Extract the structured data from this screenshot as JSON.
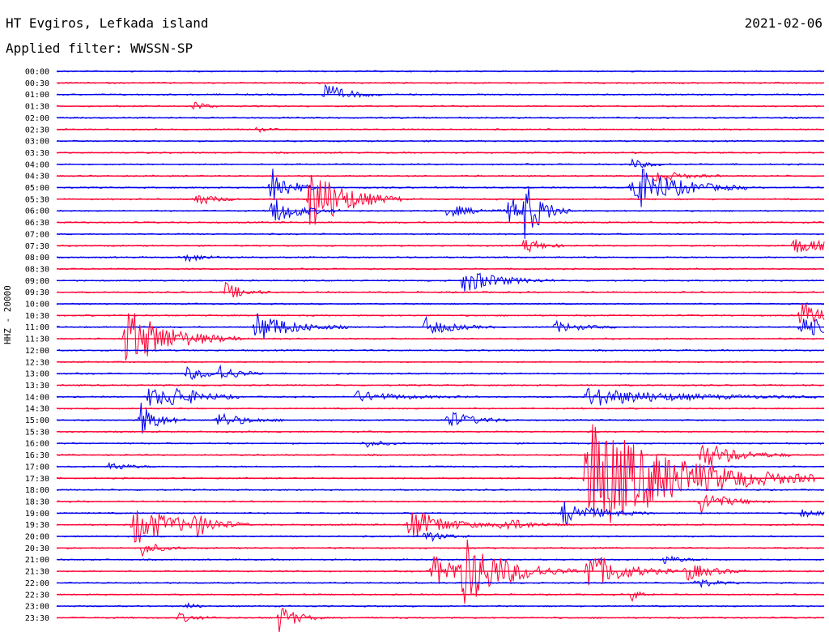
{
  "header": {
    "station": "HT Evgiros, Lefkada island",
    "date": "2021-02-06",
    "filter": "Applied filter: WWSSN-SP"
  },
  "chart_data": {
    "type": "line",
    "title": "HT Evgiros, Lefkada island",
    "subtitle": "Applied filter: WWSSN-SP",
    "ylabel": "HHZ - 20000",
    "xlabel": "",
    "trace_colors": [
      "#0000ee",
      "#ff0033"
    ],
    "rows": [
      "00:00",
      "00:30",
      "01:00",
      "01:30",
      "02:00",
      "02:30",
      "03:00",
      "03:30",
      "04:00",
      "04:30",
      "05:00",
      "05:30",
      "06:00",
      "06:30",
      "07:00",
      "07:30",
      "08:00",
      "08:30",
      "09:00",
      "09:30",
      "10:00",
      "10:30",
      "11:00",
      "11:30",
      "12:00",
      "12:30",
      "13:00",
      "13:30",
      "14:00",
      "14:30",
      "15:00",
      "15:30",
      "16:00",
      "16:30",
      "17:00",
      "17:30",
      "18:00",
      "18:30",
      "19:00",
      "19:30",
      "20:00",
      "20:30",
      "21:00",
      "21:30",
      "22:00",
      "22:30",
      "23:00",
      "23:30"
    ],
    "events": [
      {
        "row": 2,
        "x": 0.35,
        "amp": 14,
        "dur": 0.025
      },
      {
        "row": 3,
        "x": 0.18,
        "amp": 8,
        "dur": 0.01
      },
      {
        "row": 5,
        "x": 0.26,
        "amp": 4,
        "dur": 0.01
      },
      {
        "row": 8,
        "x": 0.75,
        "amp": 6,
        "dur": 0.02
      },
      {
        "row": 9,
        "x": 0.78,
        "amp": 8,
        "dur": 0.03
      },
      {
        "row": 10,
        "x": 0.28,
        "amp": 28,
        "dur": 0.02
      },
      {
        "row": 10,
        "x": 0.75,
        "amp": 30,
        "dur": 0.05
      },
      {
        "row": 11,
        "x": 0.33,
        "amp": 45,
        "dur": 0.04
      },
      {
        "row": 11,
        "x": 0.18,
        "amp": 10,
        "dur": 0.02
      },
      {
        "row": 12,
        "x": 0.28,
        "amp": 18,
        "dur": 0.03
      },
      {
        "row": 12,
        "x": 0.59,
        "amp": 16,
        "dur": 0.03
      },
      {
        "row": 12,
        "x": 0.51,
        "amp": 8,
        "dur": 0.03
      },
      {
        "row": 12,
        "x": 0.61,
        "amp": 30,
        "dur": 0.02
      },
      {
        "row": 15,
        "x": 0.61,
        "amp": 10,
        "dur": 0.02
      },
      {
        "row": 15,
        "x": 0.96,
        "amp": 10,
        "dur": 0.05
      },
      {
        "row": 16,
        "x": 0.17,
        "amp": 6,
        "dur": 0.02
      },
      {
        "row": 18,
        "x": 0.53,
        "amp": 16,
        "dur": 0.04
      },
      {
        "row": 19,
        "x": 0.22,
        "amp": 12,
        "dur": 0.02
      },
      {
        "row": 21,
        "x": 0.97,
        "amp": 16,
        "dur": 0.03
      },
      {
        "row": 22,
        "x": 0.26,
        "amp": 20,
        "dur": 0.04
      },
      {
        "row": 22,
        "x": 0.48,
        "amp": 12,
        "dur": 0.03
      },
      {
        "row": 22,
        "x": 0.97,
        "amp": 14,
        "dur": 0.04
      },
      {
        "row": 22,
        "x": 0.65,
        "amp": 7,
        "dur": 0.03
      },
      {
        "row": 23,
        "x": 0.09,
        "amp": 40,
        "dur": 0.05
      },
      {
        "row": 26,
        "x": 0.17,
        "amp": 8,
        "dur": 0.03
      },
      {
        "row": 26,
        "x": 0.21,
        "amp": 10,
        "dur": 0.02
      },
      {
        "row": 28,
        "x": 0.12,
        "amp": 12,
        "dur": 0.04
      },
      {
        "row": 28,
        "x": 0.15,
        "amp": 10,
        "dur": 0.03
      },
      {
        "row": 28,
        "x": 0.39,
        "amp": 7,
        "dur": 0.05
      },
      {
        "row": 28,
        "x": 0.69,
        "amp": 12,
        "dur": 0.1
      },
      {
        "row": 30,
        "x": 0.11,
        "amp": 22,
        "dur": 0.02
      },
      {
        "row": 30,
        "x": 0.21,
        "amp": 10,
        "dur": 0.03
      },
      {
        "row": 30,
        "x": 0.51,
        "amp": 12,
        "dur": 0.03
      },
      {
        "row": 32,
        "x": 0.4,
        "amp": 5,
        "dur": 0.02
      },
      {
        "row": 33,
        "x": 0.84,
        "amp": 18,
        "dur": 0.04
      },
      {
        "row": 34,
        "x": 0.07,
        "amp": 6,
        "dur": 0.02
      },
      {
        "row": 35,
        "x": 0.69,
        "amp": 80,
        "dur": 0.1
      },
      {
        "row": 37,
        "x": 0.84,
        "amp": 14,
        "dur": 0.03
      },
      {
        "row": 38,
        "x": 0.66,
        "amp": 16,
        "dur": 0.04
      },
      {
        "row": 38,
        "x": 0.97,
        "amp": 6,
        "dur": 0.02
      },
      {
        "row": 39,
        "x": 0.1,
        "amp": 26,
        "dur": 0.05
      },
      {
        "row": 39,
        "x": 0.18,
        "amp": 12,
        "dur": 0.02
      },
      {
        "row": 39,
        "x": 0.46,
        "amp": 22,
        "dur": 0.04
      },
      {
        "row": 39,
        "x": 0.58,
        "amp": 10,
        "dur": 0.03
      },
      {
        "row": 40,
        "x": 0.48,
        "amp": 8,
        "dur": 0.02
      },
      {
        "row": 41,
        "x": 0.11,
        "amp": 10,
        "dur": 0.02
      },
      {
        "row": 42,
        "x": 0.79,
        "amp": 6,
        "dur": 0.02
      },
      {
        "row": 43,
        "x": 0.49,
        "amp": 20,
        "dur": 0.05
      },
      {
        "row": 43,
        "x": 0.53,
        "amp": 36,
        "dur": 0.05
      },
      {
        "row": 43,
        "x": 0.69,
        "amp": 28,
        "dur": 0.04
      },
      {
        "row": 43,
        "x": 0.82,
        "amp": 12,
        "dur": 0.03
      },
      {
        "row": 44,
        "x": 0.83,
        "amp": 8,
        "dur": 0.02
      },
      {
        "row": 45,
        "x": 0.75,
        "amp": 8,
        "dur": 0.01
      },
      {
        "row": 46,
        "x": 0.17,
        "amp": 5,
        "dur": 0.01
      },
      {
        "row": 47,
        "x": 0.29,
        "amp": 18,
        "dur": 0.02
      },
      {
        "row": 47,
        "x": 0.16,
        "amp": 6,
        "dur": 0.02
      }
    ]
  }
}
